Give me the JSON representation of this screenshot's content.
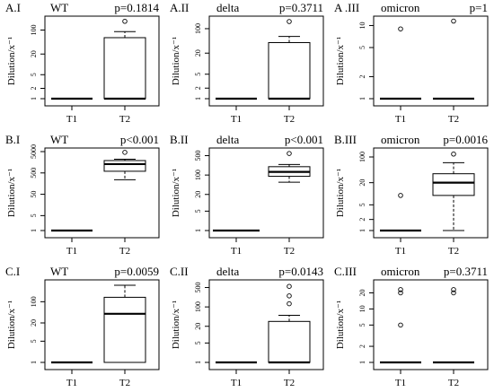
{
  "figure": {
    "ylabel": "Dilution/x⁻¹",
    "background": "#ffffff",
    "line_color": "#000000"
  },
  "chart_data": [
    {
      "type": "boxplot",
      "panel": "A.I",
      "virus": "WT",
      "pvalue": "p=0.1814",
      "y_scale": "log",
      "ylim": [
        1,
        200
      ],
      "y_ticks": [
        {
          "v": 1,
          "label": "1"
        },
        {
          "v": 2,
          "label": "2"
        },
        {
          "v": 5,
          "label": "5"
        },
        {
          "v": 20,
          "label": "20"
        },
        {
          "v": 100,
          "label": "100"
        }
      ],
      "categories": [
        "T1",
        "T2"
      ],
      "boxes": [
        {
          "q1": 1,
          "median": 1,
          "q3": 1,
          "whisker_low": 1,
          "whisker_high": 1,
          "outliers": []
        },
        {
          "q1": 1,
          "median": 1,
          "q3": 60,
          "whisker_low": 1,
          "whisker_high": 90,
          "outliers": [
            180
          ]
        }
      ]
    },
    {
      "type": "boxplot",
      "panel": "A.II",
      "virus": "delta",
      "pvalue": "p=0.3711",
      "y_scale": "log",
      "ylim": [
        1,
        180
      ],
      "y_ticks": [
        {
          "v": 1,
          "label": "1"
        },
        {
          "v": 2,
          "label": "2"
        },
        {
          "v": 5,
          "label": "5"
        },
        {
          "v": 20,
          "label": "20"
        },
        {
          "v": 100,
          "label": "100"
        }
      ],
      "categories": [
        "T1",
        "T2"
      ],
      "boxes": [
        {
          "q1": 1,
          "median": 1,
          "q3": 1,
          "whisker_low": 1,
          "whisker_high": 1,
          "outliers": []
        },
        {
          "q1": 1,
          "median": 1,
          "q3": 40,
          "whisker_low": 1,
          "whisker_high": 60,
          "outliers": [
            160
          ]
        }
      ]
    },
    {
      "type": "boxplot",
      "panel": "A.III",
      "virus": "omicron",
      "pvalue": "p=1",
      "panel_label": "A .III",
      "y_scale": "log",
      "ylim": [
        1,
        12
      ],
      "y_ticks": [
        {
          "v": 1,
          "label": "1"
        },
        {
          "v": 2,
          "label": "2"
        },
        {
          "v": 5,
          "label": "5"
        },
        {
          "v": 10,
          "label": "10"
        }
      ],
      "categories": [
        "T1",
        "T2"
      ],
      "boxes": [
        {
          "q1": 1,
          "median": 1,
          "q3": 1,
          "whisker_low": 1,
          "whisker_high": 1,
          "outliers": [
            9
          ]
        },
        {
          "q1": 1,
          "median": 1,
          "q3": 1,
          "whisker_low": 1,
          "whisker_high": 1,
          "outliers": [
            11.5
          ]
        }
      ]
    },
    {
      "type": "boxplot",
      "panel": "B.I",
      "virus": "WT",
      "pvalue": "p<0.001",
      "y_scale": "log",
      "ylim": [
        1,
        5000
      ],
      "y_ticks": [
        {
          "v": 1,
          "label": "1"
        },
        {
          "v": 5,
          "label": "5"
        },
        {
          "v": 50,
          "label": "50"
        },
        {
          "v": 500,
          "label": "500"
        },
        {
          "v": 5000,
          "label": "5000"
        }
      ],
      "categories": [
        "T1",
        "T2"
      ],
      "boxes": [
        {
          "q1": 1,
          "median": 1,
          "q3": 1,
          "whisker_low": 1,
          "whisker_high": 1,
          "outliers": []
        },
        {
          "q1": 600,
          "median": 1300,
          "q3": 1900,
          "whisker_low": 240,
          "whisker_high": 2200,
          "outliers": [
            4600
          ]
        }
      ]
    },
    {
      "type": "boxplot",
      "panel": "B.II",
      "virus": "delta",
      "pvalue": "p<0.001",
      "y_scale": "log",
      "ylim": [
        1,
        700
      ],
      "y_ticks": [
        {
          "v": 1,
          "label": "1"
        },
        {
          "v": 5,
          "label": "5"
        },
        {
          "v": 20,
          "label": "20"
        },
        {
          "v": 100,
          "label": "100"
        },
        {
          "v": 500,
          "label": "500"
        }
      ],
      "categories": [
        "T1",
        "T2"
      ],
      "boxes": [
        {
          "q1": 90,
          "median": 130,
          "q3": 200,
          "whisker_low": 55,
          "whisker_high": 240,
          "outliers": [
            600
          ]
        }
      ],
      "box_categories": [
        1
      ],
      "t1_flat": 1
    },
    {
      "type": "boxplot",
      "panel": "B.III",
      "virus": "omicron",
      "pvalue": "p=0.0016",
      "y_scale": "log",
      "ylim": [
        1,
        140
      ],
      "y_ticks": [
        {
          "v": 1,
          "label": "1"
        },
        {
          "v": 2,
          "label": "2"
        },
        {
          "v": 5,
          "label": "5"
        },
        {
          "v": 20,
          "label": "20"
        },
        {
          "v": 100,
          "label": "100"
        }
      ],
      "categories": [
        "T1",
        "T2"
      ],
      "boxes": [
        {
          "q1": 1,
          "median": 1,
          "q3": 1,
          "whisker_low": 1,
          "whisker_high": 1,
          "outliers": [
            9
          ]
        },
        {
          "q1": 9,
          "median": 20,
          "q3": 35,
          "whisker_low": 1,
          "whisker_high": 70,
          "outliers": [
            120
          ]
        }
      ]
    },
    {
      "type": "boxplot",
      "panel": "C.I",
      "virus": "WT",
      "pvalue": "p=0.0059",
      "y_scale": "log",
      "ylim": [
        1,
        400
      ],
      "y_ticks": [
        {
          "v": 1,
          "label": "1"
        },
        {
          "v": 5,
          "label": "5"
        },
        {
          "v": 20,
          "label": "20"
        },
        {
          "v": 100,
          "label": "100"
        }
      ],
      "categories": [
        "T1",
        "T2"
      ],
      "boxes": [
        {
          "q1": 1,
          "median": 1,
          "q3": 1,
          "whisker_low": 1,
          "whisker_high": 1,
          "outliers": []
        },
        {
          "q1": 1,
          "median": 40,
          "q3": 140,
          "whisker_low": 1,
          "whisker_high": 350,
          "outliers": []
        }
      ]
    },
    {
      "type": "boxplot",
      "panel": "C.II",
      "virus": "delta",
      "pvalue": "p=0.0143",
      "y_scale": "log",
      "ylim": [
        1,
        700
      ],
      "y_ticks": [
        {
          "v": 1,
          "label": "1"
        },
        {
          "v": 5,
          "label": "5"
        },
        {
          "v": 20,
          "label": "20"
        },
        {
          "v": 100,
          "label": "100"
        },
        {
          "v": 500,
          "label": "500"
        }
      ],
      "categories": [
        "T1",
        "T2"
      ],
      "boxes": [
        {
          "q1": 1,
          "median": 1,
          "q3": 1,
          "whisker_low": 1,
          "whisker_high": 1,
          "outliers": []
        },
        {
          "q1": 1,
          "median": 1,
          "q3": 30,
          "whisker_low": 1,
          "whisker_high": 50,
          "outliers": [
            130,
            250,
            550
          ]
        }
      ]
    },
    {
      "type": "boxplot",
      "panel": "C.III",
      "virus": "omicron",
      "pvalue": "p=0.3711",
      "y_scale": "log",
      "ylim": [
        1,
        30
      ],
      "y_ticks": [
        {
          "v": 1,
          "label": "1"
        },
        {
          "v": 2,
          "label": "2"
        },
        {
          "v": 5,
          "label": "5"
        },
        {
          "v": 10,
          "label": "10"
        },
        {
          "v": 20,
          "label": "20"
        }
      ],
      "categories": [
        "T1",
        "T2"
      ],
      "boxes": [
        {
          "q1": 1,
          "median": 1,
          "q3": 1,
          "whisker_low": 1,
          "whisker_high": 1,
          "outliers": [
            5,
            20,
            23
          ]
        },
        {
          "q1": 1,
          "median": 1,
          "q3": 1,
          "whisker_low": 1,
          "whisker_high": 1,
          "outliers": [
            20,
            23
          ]
        }
      ]
    }
  ]
}
